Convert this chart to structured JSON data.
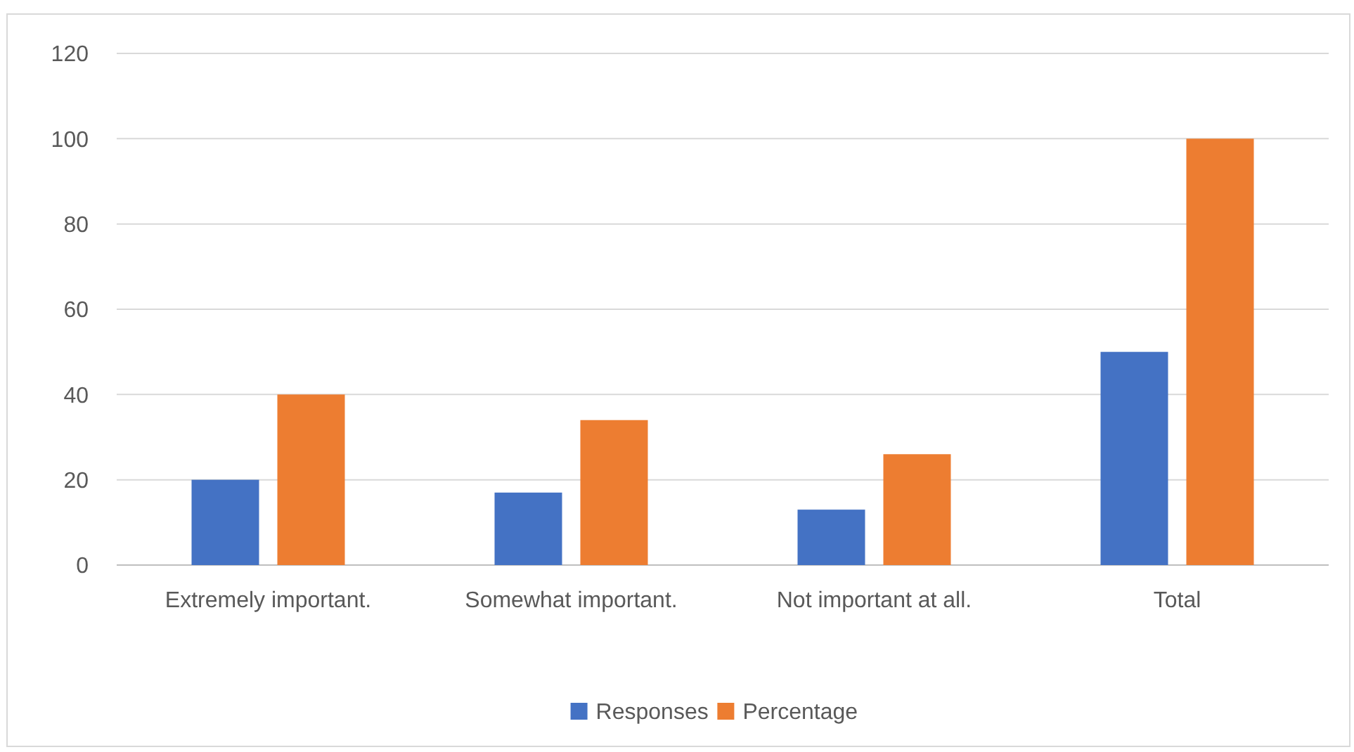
{
  "chart_data": {
    "type": "bar",
    "categories": [
      "Extremely important.",
      "Somewhat important.",
      "Not important at all.",
      "Total"
    ],
    "series": [
      {
        "name": "Responses",
        "color": "#4472c4",
        "values": [
          20,
          17,
          13,
          50
        ]
      },
      {
        "name": "Percentage",
        "color": "#ed7d31",
        "values": [
          40,
          34,
          26,
          100
        ]
      }
    ],
    "ylim": [
      0,
      120
    ],
    "yticks": [
      0,
      20,
      40,
      60,
      80,
      100,
      120
    ],
    "grid": "y",
    "legend": "bottom"
  }
}
